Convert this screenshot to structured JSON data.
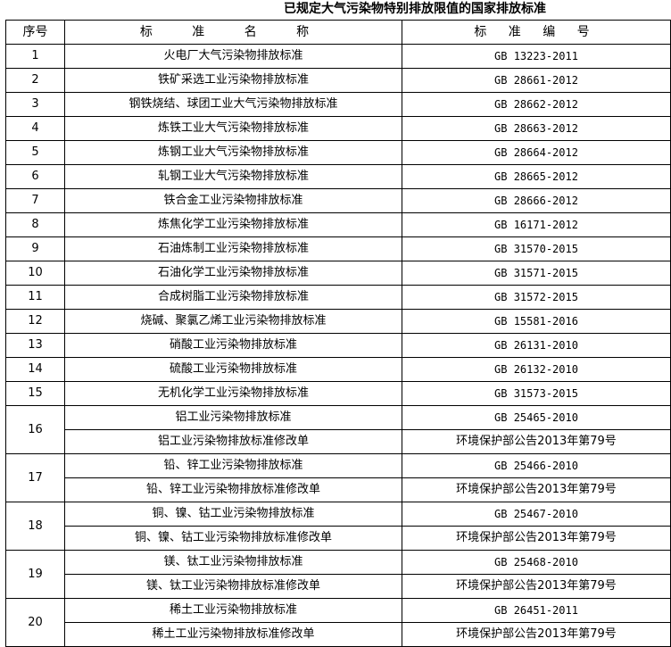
{
  "title": "已规定大气污染物特别排放限值的国家排放标准",
  "headers": {
    "no": "序号",
    "name": "标 准 名 称",
    "code": "标 准 编 号"
  },
  "rows": [
    {
      "no": "1",
      "items": [
        {
          "name": "火电厂大气污染物排放标准",
          "code": "GB 13223-2011"
        }
      ]
    },
    {
      "no": "2",
      "items": [
        {
          "name": "铁矿采选工业污染物排放标准",
          "code": "GB 28661-2012"
        }
      ]
    },
    {
      "no": "3",
      "items": [
        {
          "name": "钢铁烧结、球团工业大气污染物排放标准",
          "code": "GB 28662-2012"
        }
      ]
    },
    {
      "no": "4",
      "items": [
        {
          "name": "炼铁工业大气污染物排放标准",
          "code": "GB 28663-2012"
        }
      ]
    },
    {
      "no": "5",
      "items": [
        {
          "name": "炼钢工业大气污染物排放标准",
          "code": "GB 28664-2012"
        }
      ]
    },
    {
      "no": "6",
      "items": [
        {
          "name": "轧钢工业大气污染物排放标准",
          "code": "GB 28665-2012"
        }
      ]
    },
    {
      "no": "7",
      "items": [
        {
          "name": "铁合金工业污染物排放标准",
          "code": "GB 28666-2012"
        }
      ]
    },
    {
      "no": "8",
      "items": [
        {
          "name": "炼焦化学工业污染物排放标准",
          "code": "GB 16171-2012"
        }
      ]
    },
    {
      "no": "9",
      "items": [
        {
          "name": "石油炼制工业污染物排放标准",
          "code": "GB 31570-2015"
        }
      ]
    },
    {
      "no": "10",
      "items": [
        {
          "name": "石油化学工业污染物排放标准",
          "code": "GB 31571-2015"
        }
      ]
    },
    {
      "no": "11",
      "items": [
        {
          "name": "合成树脂工业污染物排放标准",
          "code": "GB 31572-2015"
        }
      ]
    },
    {
      "no": "12",
      "items": [
        {
          "name": "烧碱、聚氯乙烯工业污染物排放标准",
          "code": "GB 15581-2016"
        }
      ]
    },
    {
      "no": "13",
      "items": [
        {
          "name": "硝酸工业污染物排放标准",
          "code": "GB 26131-2010"
        }
      ]
    },
    {
      "no": "14",
      "items": [
        {
          "name": "硫酸工业污染物排放标准",
          "code": "GB 26132-2010"
        }
      ]
    },
    {
      "no": "15",
      "items": [
        {
          "name": "无机化学工业污染物排放标准",
          "code": "GB 31573-2015"
        }
      ]
    },
    {
      "no": "16",
      "items": [
        {
          "name": "铝工业污染物排放标准",
          "code": "GB 25465-2010"
        },
        {
          "name": "铝工业污染物排放标准修改单",
          "code": "环境保护部公告2013年第79号"
        }
      ]
    },
    {
      "no": "17",
      "items": [
        {
          "name": "铅、锌工业污染物排放标准",
          "code": "GB 25466-2010"
        },
        {
          "name": "铅、锌工业污染物排放标准修改单",
          "code": "环境保护部公告2013年第79号"
        }
      ]
    },
    {
      "no": "18",
      "items": [
        {
          "name": "铜、镍、钴工业污染物排放标准",
          "code": "GB 25467-2010"
        },
        {
          "name": "铜、镍、钴工业污染物排放标准修改单",
          "code": "环境保护部公告2013年第79号"
        }
      ]
    },
    {
      "no": "19",
      "items": [
        {
          "name": "镁、钛工业污染物排放标准",
          "code": "GB 25468-2010"
        },
        {
          "name": "镁、钛工业污染物排放标准修改单",
          "code": "环境保护部公告2013年第79号"
        }
      ]
    },
    {
      "no": "20",
      "items": [
        {
          "name": "稀土工业污染物排放标准",
          "code": "GB 26451-2011"
        },
        {
          "name": "稀土工业污染物排放标准修改单",
          "code": "环境保护部公告2013年第79号"
        }
      ]
    }
  ]
}
